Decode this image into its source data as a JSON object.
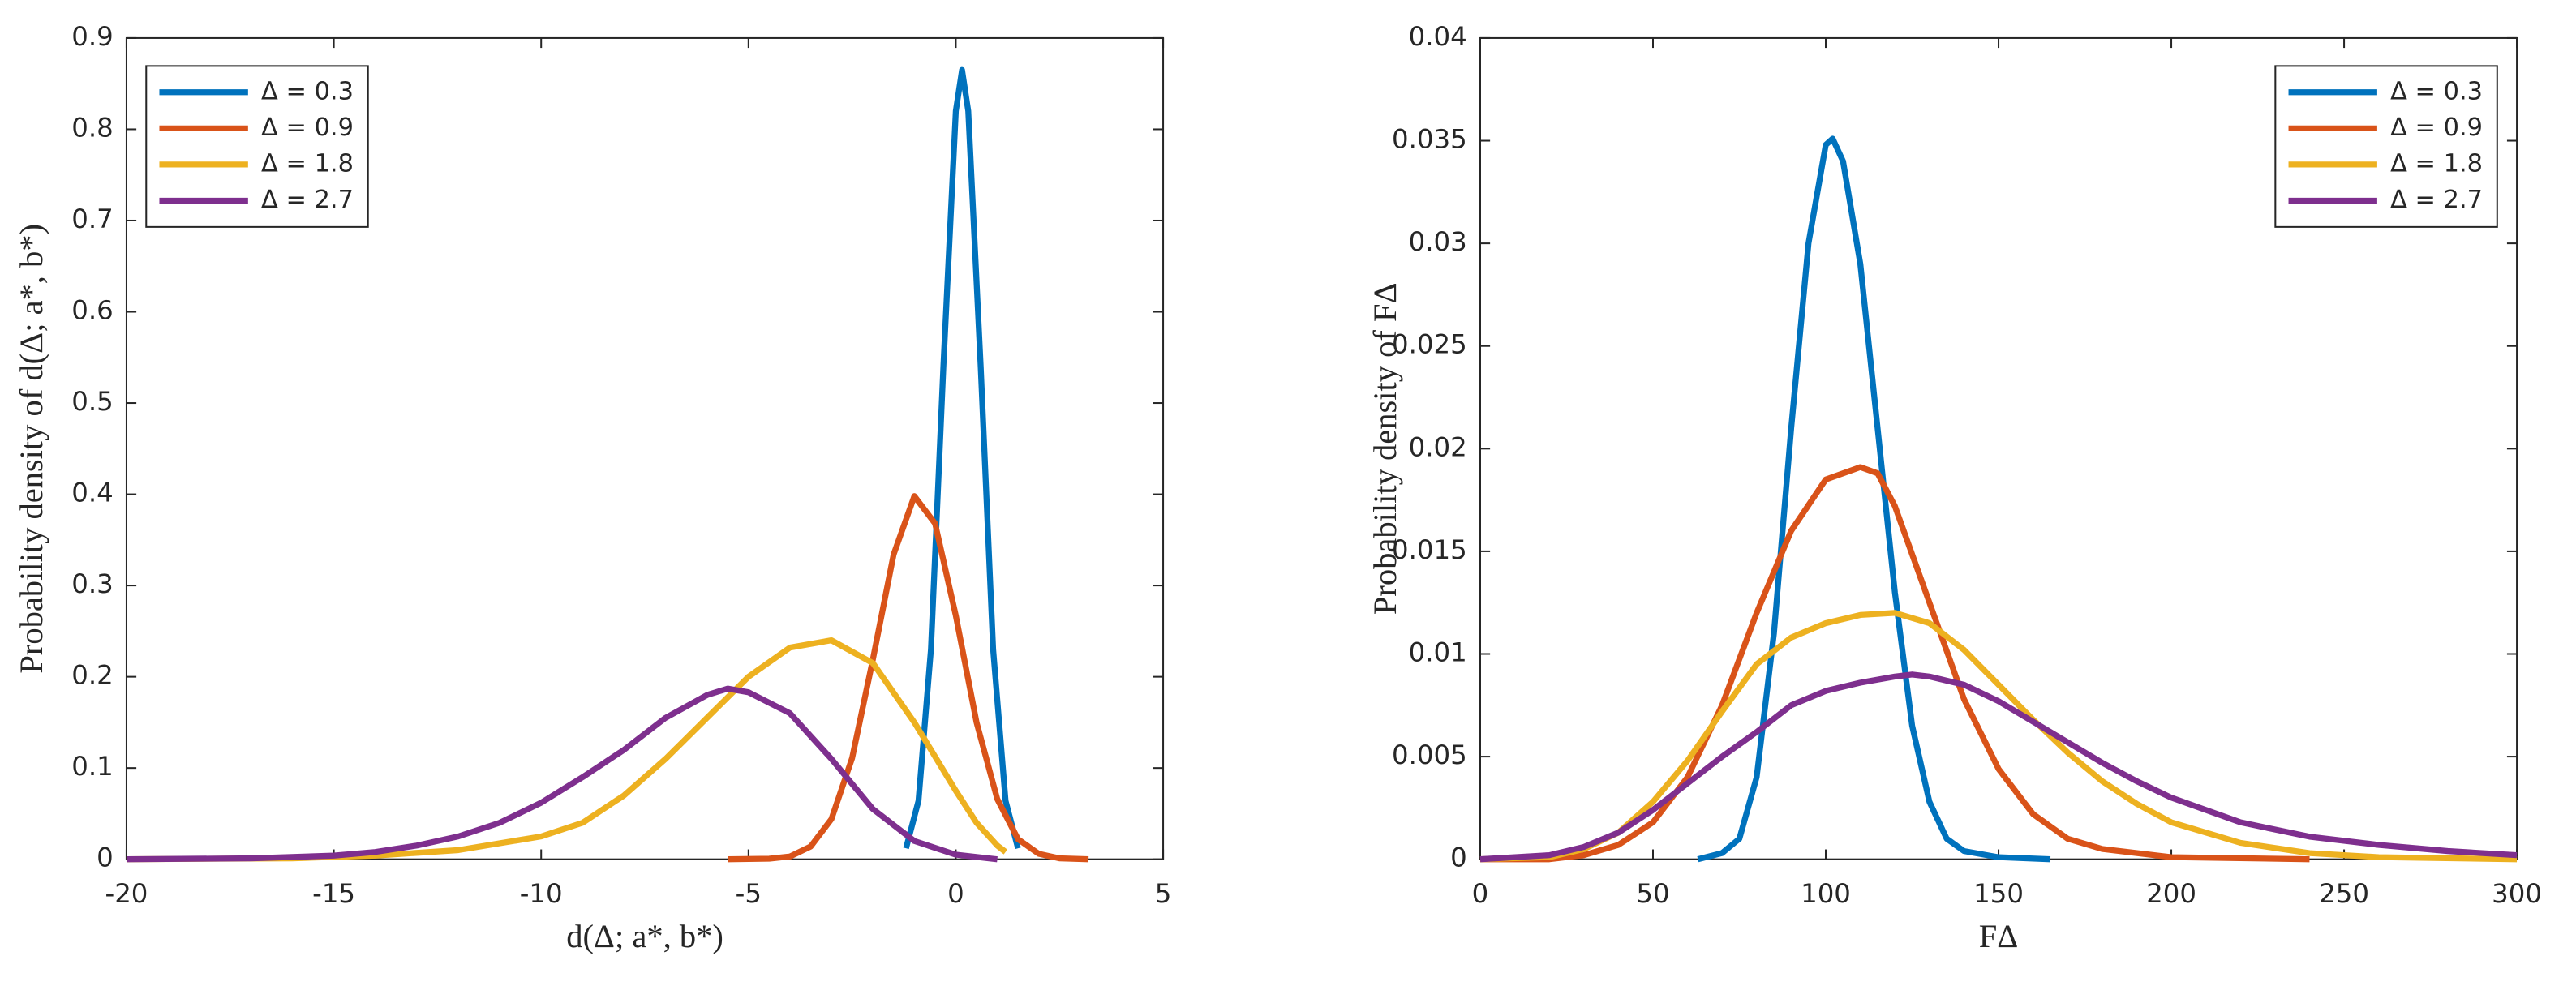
{
  "chart_data": [
    {
      "type": "line",
      "xlabel": "d(Δ; a*, b*)",
      "ylabel": "Probability density of d(Δ; a*, b*)",
      "xlim": [
        -20,
        5
      ],
      "xticks": [
        -20,
        -15,
        -10,
        -5,
        0,
        5
      ],
      "ylim": [
        0,
        0.9
      ],
      "yticks": [
        0,
        0.1,
        0.2,
        0.3,
        0.4,
        0.5,
        0.6,
        0.7,
        0.8,
        0.9
      ],
      "legend": "upper left",
      "series": [
        {
          "name": "Δ = 0.3",
          "color": "#0072BD",
          "x": [
            -1.2,
            -0.9,
            -0.6,
            -0.3,
            0,
            0.15,
            0.3,
            0.6,
            0.9,
            1.2,
            1.5
          ],
          "values": [
            0.012,
            0.064,
            0.23,
            0.54,
            0.82,
            0.865,
            0.82,
            0.54,
            0.23,
            0.064,
            0.012
          ]
        },
        {
          "name": "Δ = 0.9",
          "color": "#D95319",
          "x": [
            -5.5,
            -4.5,
            -4,
            -3.5,
            -3,
            -2.5,
            -2,
            -1.5,
            -1,
            -0.5,
            0,
            0.5,
            1,
            1.5,
            2,
            2.5,
            3.2
          ],
          "values": [
            0,
            0.0006,
            0.003,
            0.014,
            0.044,
            0.111,
            0.219,
            0.334,
            0.398,
            0.368,
            0.267,
            0.15,
            0.066,
            0.022,
            0.006,
            0.001,
            0
          ]
        },
        {
          "name": "Δ = 1.8",
          "color": "#EDB120",
          "x": [
            -20,
            -16,
            -14,
            -12,
            -10,
            -9,
            -8,
            -7,
            -6,
            -5,
            -4,
            -3,
            -2,
            -1,
            0,
            0.5,
            1,
            1.2
          ],
          "values": [
            0,
            0.001,
            0.004,
            0.01,
            0.025,
            0.04,
            0.07,
            0.11,
            0.155,
            0.2,
            0.232,
            0.24,
            0.215,
            0.15,
            0.075,
            0.04,
            0.015,
            0.008
          ]
        },
        {
          "name": "Δ = 2.7",
          "color": "#7E2F8E",
          "x": [
            -20,
            -17,
            -15,
            -14,
            -13,
            -12,
            -11,
            -10,
            -9,
            -8,
            -7,
            -6,
            -5.5,
            -5,
            -4,
            -3,
            -2,
            -1,
            0,
            1
          ],
          "values": [
            0,
            0.001,
            0.004,
            0.008,
            0.015,
            0.025,
            0.04,
            0.062,
            0.09,
            0.12,
            0.155,
            0.18,
            0.187,
            0.183,
            0.16,
            0.11,
            0.055,
            0.02,
            0.005,
            0
          ]
        }
      ]
    },
    {
      "type": "line",
      "xlabel": "FΔ",
      "ylabel": "Probability density of FΔ",
      "xlim": [
        0,
        300
      ],
      "xticks": [
        0,
        50,
        100,
        150,
        200,
        250,
        300
      ],
      "ylim": [
        0,
        0.04
      ],
      "yticks": [
        0,
        0.005,
        0.01,
        0.015,
        0.02,
        0.025,
        0.03,
        0.035,
        0.04
      ],
      "legend": "upper right",
      "series": [
        {
          "name": "Δ = 0.3",
          "color": "#0072BD",
          "x": [
            63,
            70,
            75,
            80,
            85,
            90,
            95,
            100,
            102,
            105,
            110,
            115,
            120,
            125,
            130,
            135,
            140,
            150,
            165
          ],
          "values": [
            0,
            0.0003,
            0.001,
            0.004,
            0.011,
            0.021,
            0.03,
            0.0348,
            0.0351,
            0.034,
            0.029,
            0.021,
            0.013,
            0.0065,
            0.0028,
            0.001,
            0.0004,
            0.0001,
            0
          ]
        },
        {
          "name": "Δ = 0.9",
          "color": "#D95319",
          "x": [
            0,
            20,
            30,
            40,
            50,
            60,
            70,
            80,
            90,
            100,
            110,
            115,
            120,
            130,
            140,
            150,
            160,
            170,
            180,
            200,
            240
          ],
          "values": [
            0,
            0,
            0.0002,
            0.0007,
            0.0018,
            0.004,
            0.0075,
            0.012,
            0.016,
            0.0185,
            0.0191,
            0.0188,
            0.0172,
            0.0125,
            0.0078,
            0.0044,
            0.0022,
            0.001,
            0.0005,
            0.0001,
            0
          ]
        },
        {
          "name": "Δ = 1.8",
          "color": "#EDB120",
          "x": [
            0,
            20,
            30,
            40,
            50,
            60,
            70,
            80,
            90,
            100,
            110,
            120,
            130,
            140,
            150,
            160,
            170,
            180,
            190,
            200,
            220,
            240,
            260,
            300
          ],
          "values": [
            0,
            0.0001,
            0.0005,
            0.0013,
            0.0028,
            0.0048,
            0.0072,
            0.0095,
            0.0108,
            0.0115,
            0.0119,
            0.012,
            0.0115,
            0.0102,
            0.0085,
            0.0068,
            0.0052,
            0.0038,
            0.0027,
            0.0018,
            0.0008,
            0.0003,
            0.0001,
            0
          ]
        },
        {
          "name": "Δ = 2.7",
          "color": "#7E2F8E",
          "x": [
            0,
            20,
            30,
            40,
            50,
            60,
            70,
            80,
            90,
            100,
            110,
            120,
            125,
            130,
            140,
            150,
            160,
            170,
            180,
            190,
            200,
            220,
            240,
            260,
            280,
            300
          ],
          "values": [
            0,
            0.0002,
            0.0006,
            0.0013,
            0.0024,
            0.0037,
            0.005,
            0.0062,
            0.0075,
            0.0082,
            0.0086,
            0.0089,
            0.009,
            0.0089,
            0.0085,
            0.0077,
            0.0067,
            0.0057,
            0.0047,
            0.0038,
            0.003,
            0.0018,
            0.0011,
            0.0007,
            0.0004,
            0.0002
          ]
        }
      ]
    }
  ]
}
